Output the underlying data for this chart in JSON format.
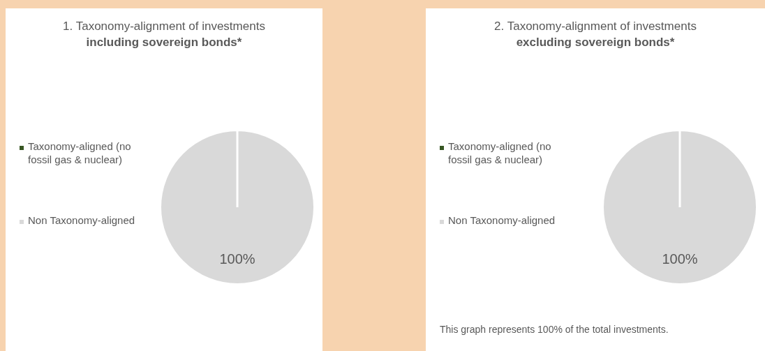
{
  "chart_data": [
    {
      "type": "pie",
      "title": "1. Taxonomy-alignment of investments",
      "subtitle": "including sovereign bonds*",
      "categories": [
        "Taxonomy-aligned (no fossil gas & nuclear)",
        "Non Taxonomy-aligned"
      ],
      "values": [
        0,
        100
      ],
      "colors": [
        "#375623",
        "#d9d9d9"
      ],
      "value_labels": [
        null,
        "100%"
      ],
      "legend": "left"
    },
    {
      "type": "pie",
      "title": "2. Taxonomy-alignment of investments",
      "subtitle": "excluding sovereign bonds*",
      "categories": [
        "Taxonomy-aligned (no fossil gas & nuclear)",
        "Non Taxonomy-aligned"
      ],
      "values": [
        0,
        100
      ],
      "colors": [
        "#375623",
        "#d9d9d9"
      ],
      "value_labels": [
        null,
        "100%"
      ],
      "legend": "left",
      "annotations": [
        "This graph represents 100% of the total investments."
      ]
    }
  ]
}
